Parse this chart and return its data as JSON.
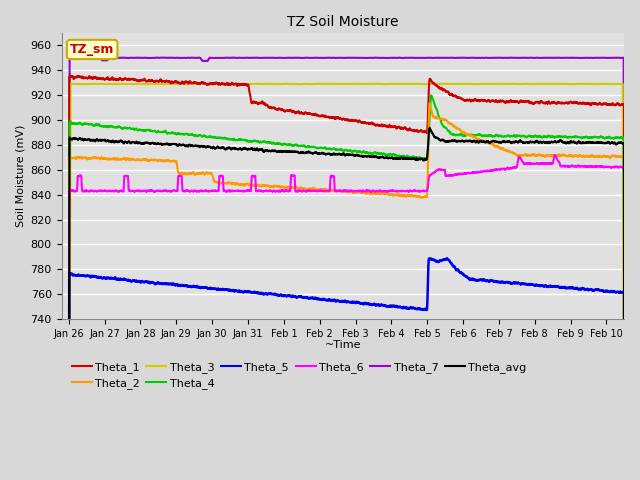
{
  "title": "TZ Soil Moisture",
  "xlabel": "~Time",
  "ylabel": "Soil Moisture (mV)",
  "ylim": [
    740,
    970
  ],
  "yticks": [
    740,
    760,
    780,
    800,
    820,
    840,
    860,
    880,
    900,
    920,
    940,
    960
  ],
  "bg_color": "#d8d8d8",
  "plot_bg": "#e0e0e0",
  "grid_color": "#ffffff",
  "box_label": "TZ_sm",
  "box_facecolor": "#ffffcc",
  "box_edgecolor": "#ccaa00",
  "box_textcolor": "#cc0000",
  "series": {
    "Theta_1": {
      "color": "#cc0000",
      "lw": 1.5
    },
    "Theta_2": {
      "color": "#ff9900",
      "lw": 1.5
    },
    "Theta_3": {
      "color": "#cccc00",
      "lw": 1.5
    },
    "Theta_4": {
      "color": "#00cc00",
      "lw": 1.5
    },
    "Theta_5": {
      "color": "#0000ee",
      "lw": 1.8
    },
    "Theta_6": {
      "color": "#ff00ff",
      "lw": 1.5
    },
    "Theta_7": {
      "color": "#9900cc",
      "lw": 1.5
    },
    "Theta_avg": {
      "color": "#000000",
      "lw": 1.5
    }
  },
  "xtick_labels": [
    "Jan 26",
    "Jan 27",
    "Jan 28",
    "Jan 29",
    "Jan 30",
    "Jan 31",
    "Feb 1",
    "Feb 2",
    "Feb 3",
    "Feb 4",
    "Feb 5",
    "Feb 6",
    "Feb 7",
    "Feb 8",
    "Feb 9",
    "Feb 10"
  ],
  "xtick_positions": [
    0,
    1,
    2,
    3,
    4,
    5,
    6,
    7,
    8,
    9,
    10,
    11,
    12,
    13,
    14,
    15
  ]
}
